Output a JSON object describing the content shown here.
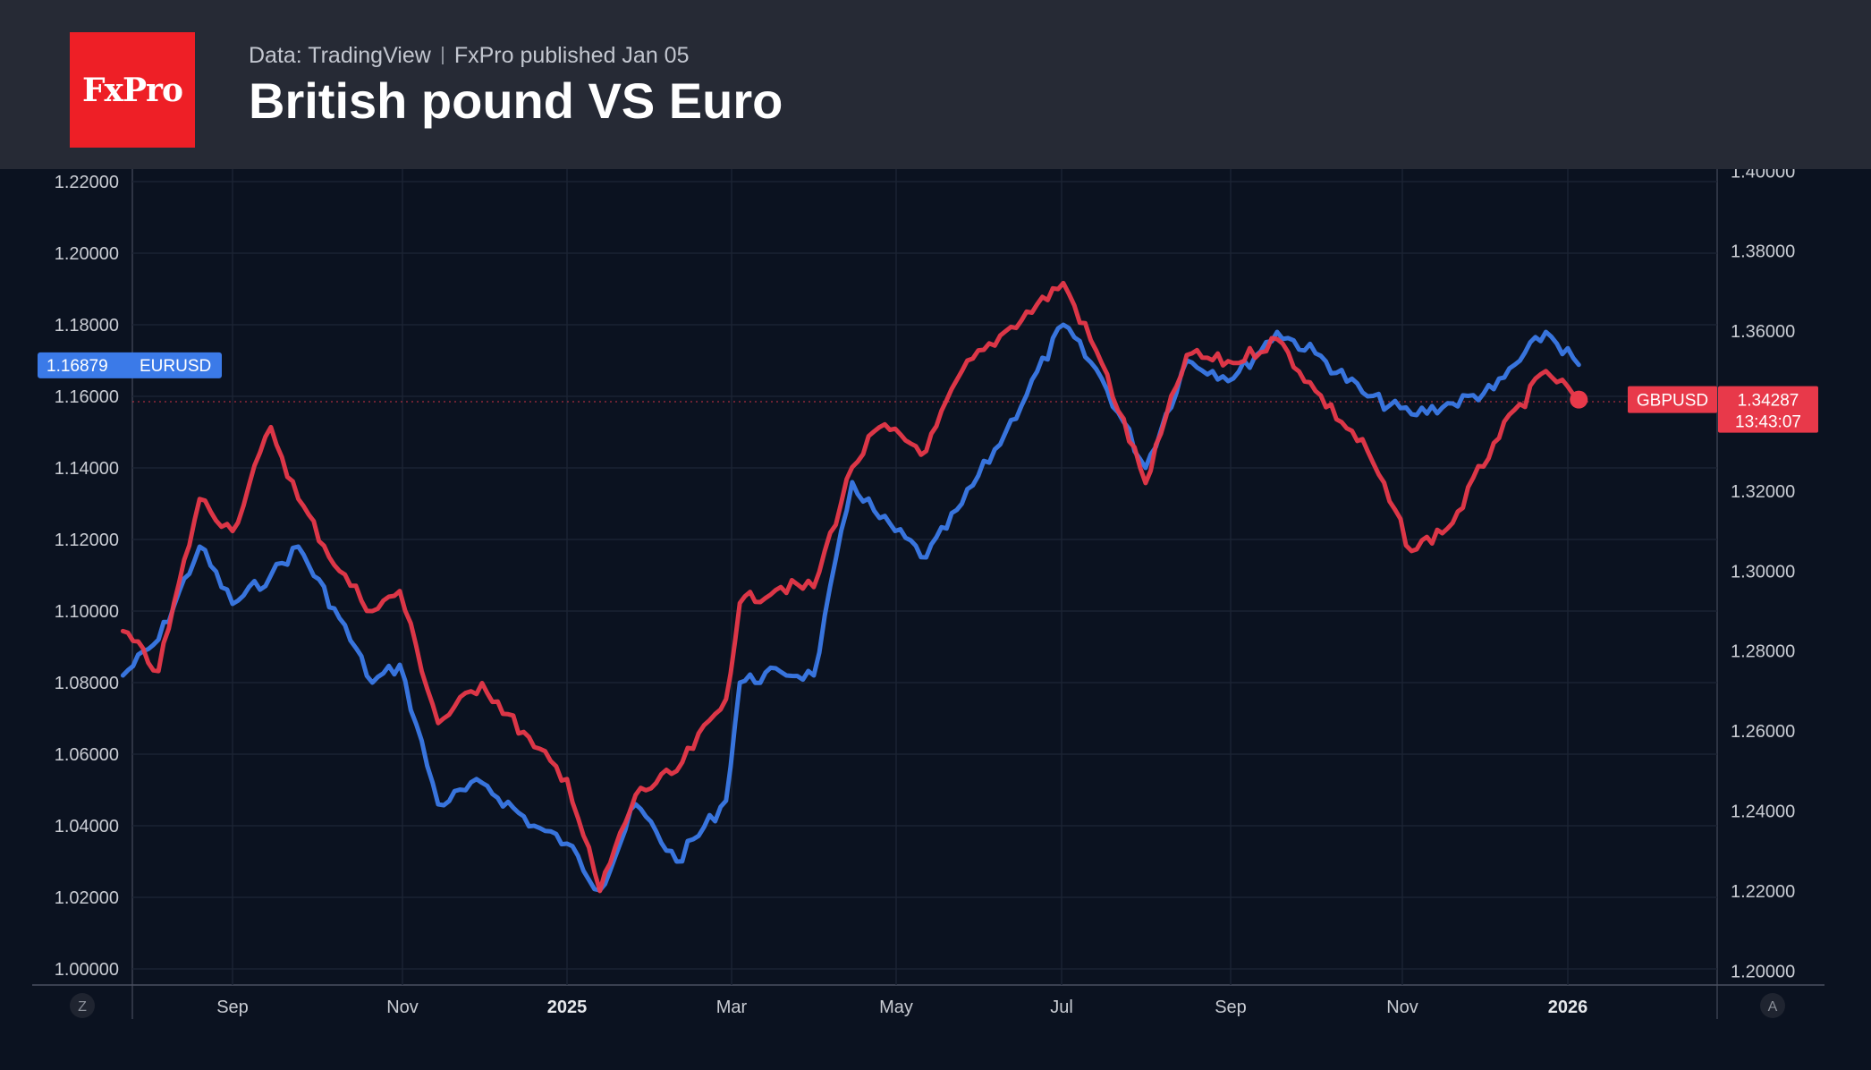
{
  "header": {
    "logo": "FxPro",
    "data_source": "Data: TradingView",
    "published": "FxPro published Jan 05",
    "title": "British pound VS Euro"
  },
  "buttons": {
    "left": "Z",
    "right": "A"
  },
  "colors": {
    "eurusd": "#3b7ae8",
    "gbpusd": "#e8394a",
    "background": "#0b1220",
    "header": "#262a35"
  },
  "chart_data": {
    "type": "line",
    "x_tick_labels": [
      {
        "label": "Sep",
        "bold": false
      },
      {
        "label": "Nov",
        "bold": false
      },
      {
        "label": "2025",
        "bold": true
      },
      {
        "label": "Mar",
        "bold": false
      },
      {
        "label": "May",
        "bold": false
      },
      {
        "label": "Jul",
        "bold": false
      },
      {
        "label": "Sep",
        "bold": false
      },
      {
        "label": "Nov",
        "bold": false
      },
      {
        "label": "2026",
        "bold": true
      }
    ],
    "left_axis": {
      "series": "EURUSD",
      "ylim": [
        0.9955,
        1.2235
      ],
      "ticks": [
        "1.22000",
        "1.20000",
        "1.18000",
        "1.16000",
        "1.14000",
        "1.12000",
        "1.10000",
        "1.08000",
        "1.06000",
        "1.04000",
        "1.02000",
        "1.00000"
      ]
    },
    "right_axis": {
      "series": "GBPUSD",
      "ylim": [
        1.1965,
        1.4005
      ],
      "ticks": [
        "1.40000",
        "1.38000",
        "1.36000",
        "1.34000",
        "1.32000",
        "1.30000",
        "1.28000",
        "1.26000",
        "1.24000",
        "1.22000",
        "1.20000"
      ]
    },
    "current": {
      "eurusd": {
        "label": "EURUSD",
        "value": "1.16879"
      },
      "gbpusd": {
        "label": "GBPUSD",
        "value": "1.34287",
        "time": "13:43:07"
      }
    },
    "series": [
      {
        "name": "EURUSD",
        "axis": "left",
        "x": [
          "2024-07-23",
          "2024-08-05",
          "2024-08-20",
          "2024-09-01",
          "2024-09-15",
          "2024-09-25",
          "2024-10-10",
          "2024-10-22",
          "2024-11-01",
          "2024-11-15",
          "2024-12-01",
          "2024-12-20",
          "2025-01-01",
          "2025-01-13",
          "2025-01-26",
          "2025-02-10",
          "2025-02-28",
          "2025-03-05",
          "2025-03-20",
          "2025-04-01",
          "2025-04-15",
          "2025-04-25",
          "2025-05-12",
          "2025-05-25",
          "2025-06-10",
          "2025-07-01",
          "2025-07-15",
          "2025-07-31",
          "2025-08-15",
          "2025-09-01",
          "2025-09-17",
          "2025-10-01",
          "2025-10-20",
          "2025-11-05",
          "2025-11-20",
          "2025-12-05",
          "2025-12-24",
          "2026-01-05"
        ],
        "y": [
          1.082,
          1.092,
          1.118,
          1.102,
          1.11,
          1.118,
          1.098,
          1.08,
          1.085,
          1.046,
          1.052,
          1.04,
          1.035,
          1.022,
          1.046,
          1.03,
          1.047,
          1.08,
          1.083,
          1.082,
          1.136,
          1.126,
          1.115,
          1.13,
          1.15,
          1.18,
          1.165,
          1.14,
          1.17,
          1.165,
          1.178,
          1.172,
          1.16,
          1.155,
          1.158,
          1.162,
          1.178,
          1.16879
        ]
      },
      {
        "name": "GBPUSD",
        "axis": "right",
        "x": [
          "2024-07-23",
          "2024-08-05",
          "2024-08-20",
          "2024-09-01",
          "2024-09-15",
          "2024-09-25",
          "2024-10-10",
          "2024-10-22",
          "2024-11-01",
          "2024-11-15",
          "2024-12-01",
          "2024-12-20",
          "2025-01-01",
          "2025-01-13",
          "2025-01-26",
          "2025-02-10",
          "2025-02-28",
          "2025-03-05",
          "2025-03-20",
          "2025-04-01",
          "2025-04-15",
          "2025-04-25",
          "2025-05-12",
          "2025-05-25",
          "2025-06-10",
          "2025-07-01",
          "2025-07-15",
          "2025-07-31",
          "2025-08-15",
          "2025-09-01",
          "2025-09-17",
          "2025-10-01",
          "2025-10-20",
          "2025-11-05",
          "2025-11-20",
          "2025-12-05",
          "2025-12-24",
          "2026-01-05"
        ],
        "y": [
          1.285,
          1.275,
          1.318,
          1.31,
          1.336,
          1.318,
          1.3,
          1.29,
          1.295,
          1.262,
          1.272,
          1.256,
          1.248,
          1.22,
          1.244,
          1.25,
          1.268,
          1.292,
          1.296,
          1.296,
          1.326,
          1.336,
          1.33,
          1.35,
          1.36,
          1.372,
          1.352,
          1.322,
          1.354,
          1.352,
          1.358,
          1.345,
          1.33,
          1.305,
          1.312,
          1.332,
          1.35,
          1.34287
        ]
      }
    ]
  }
}
